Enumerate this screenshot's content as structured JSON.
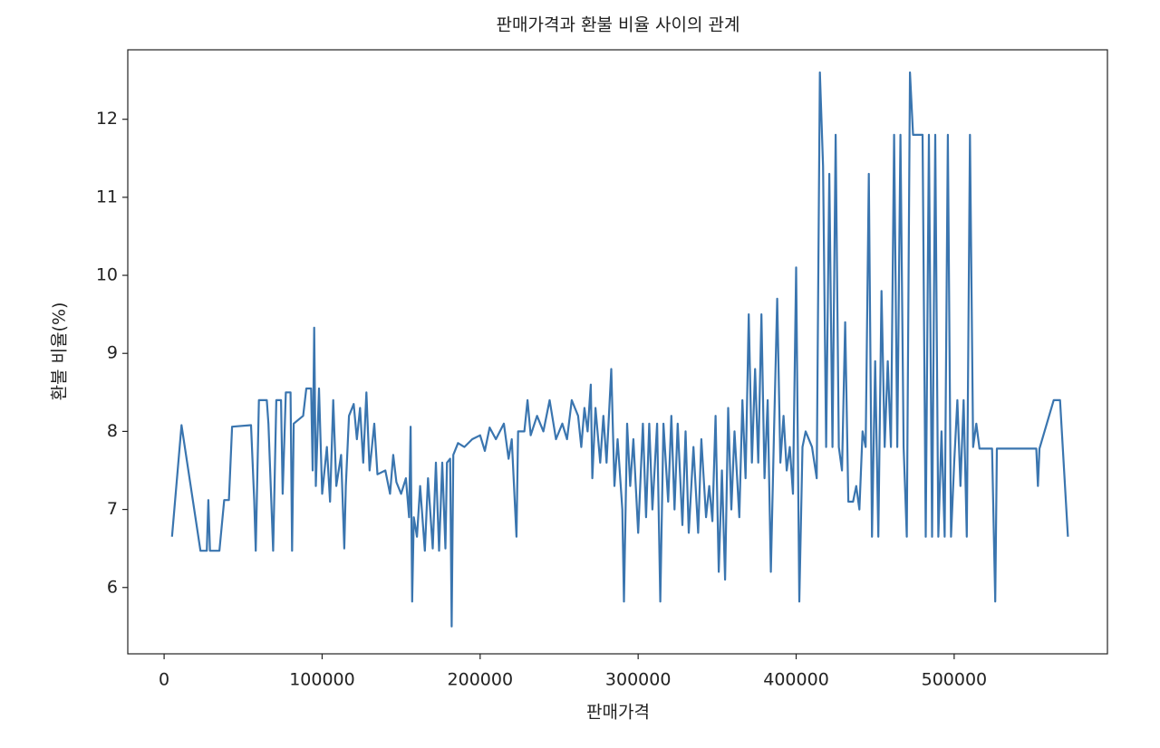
{
  "chart_data": {
    "type": "line",
    "title": "판매가격과 환불 비율 사이의 관계",
    "x_label": "판매가격",
    "y_label": "환불 비율(%)",
    "color": "#3a75af",
    "grid": false,
    "xlim": [
      -23000,
      597000
    ],
    "xticks": [
      0,
      100000,
      200000,
      300000,
      400000,
      500000
    ],
    "ylim": [
      5.15,
      12.89
    ],
    "yticks": [
      6,
      7,
      8,
      9,
      10,
      11,
      12
    ],
    "x": [
      5000,
      11000,
      23000,
      27000,
      28000,
      29000,
      35000,
      38000,
      41000,
      43000,
      55000,
      57000,
      58000,
      60000,
      65000,
      66000,
      69000,
      71000,
      74000,
      75000,
      77000,
      80000,
      81000,
      82000,
      88000,
      90000,
      93000,
      94000,
      95000,
      96000,
      98000,
      100000,
      103000,
      105000,
      107000,
      109000,
      112000,
      114000,
      115000,
      117000,
      120000,
      122000,
      124000,
      126000,
      128000,
      130000,
      133000,
      135000,
      140000,
      143000,
      145000,
      147000,
      150000,
      153000,
      155000,
      156000,
      157000,
      158000,
      160000,
      162000,
      165000,
      167000,
      170000,
      172000,
      174000,
      176000,
      178000,
      179000,
      181000,
      182000,
      183000,
      186000,
      190000,
      195000,
      200000,
      203000,
      206000,
      210000,
      215000,
      218000,
      220000,
      223000,
      224000,
      228000,
      230000,
      232000,
      236000,
      240000,
      244000,
      248000,
      252000,
      255000,
      258000,
      262000,
      264000,
      266000,
      268000,
      270000,
      271000,
      273000,
      276000,
      278000,
      280000,
      283000,
      285000,
      287000,
      290000,
      291000,
      293000,
      295000,
      297000,
      300000,
      303000,
      305000,
      307000,
      309000,
      312000,
      314000,
      316000,
      319000,
      321000,
      323000,
      325000,
      328000,
      330000,
      332000,
      335000,
      338000,
      340000,
      343000,
      345000,
      347000,
      349000,
      351000,
      353000,
      355000,
      357000,
      359000,
      361000,
      364000,
      366000,
      368000,
      370000,
      372000,
      374000,
      376000,
      378000,
      380000,
      382000,
      384000,
      386000,
      388000,
      390000,
      392000,
      394000,
      396000,
      398000,
      400000,
      402000,
      404000,
      406000,
      410000,
      413000,
      415000,
      417000,
      419000,
      421000,
      423000,
      425000,
      427000,
      429000,
      431000,
      433000,
      436000,
      438000,
      440000,
      442000,
      444000,
      446000,
      448000,
      450000,
      452000,
      454000,
      456000,
      458000,
      460000,
      462000,
      464000,
      466000,
      468000,
      470000,
      472000,
      474000,
      480000,
      482000,
      484000,
      486000,
      488000,
      490000,
      492000,
      494000,
      496000,
      498000,
      500000,
      502000,
      504000,
      506000,
      508000,
      510000,
      512000,
      514000,
      516000,
      524000,
      526000,
      527000,
      552000,
      553000,
      554000,
      563000,
      567000,
      572000
    ],
    "values": [
      6.65,
      8.08,
      6.47,
      6.47,
      7.12,
      6.47,
      6.47,
      7.12,
      7.12,
      8.06,
      8.08,
      7.12,
      6.47,
      8.4,
      8.4,
      8.1,
      6.47,
      8.4,
      8.4,
      7.2,
      8.5,
      8.5,
      6.47,
      8.1,
      8.2,
      8.55,
      8.55,
      7.5,
      9.33,
      7.3,
      8.55,
      7.2,
      7.8,
      7.1,
      8.4,
      7.3,
      7.7,
      6.5,
      7.3,
      8.2,
      8.35,
      7.9,
      8.3,
      7.6,
      8.5,
      7.5,
      8.1,
      7.45,
      7.5,
      7.2,
      7.7,
      7.35,
      7.2,
      7.4,
      6.9,
      8.06,
      5.82,
      6.9,
      6.65,
      7.3,
      6.47,
      7.4,
      6.5,
      7.6,
      6.47,
      7.6,
      6.5,
      7.6,
      7.65,
      5.5,
      7.7,
      7.85,
      7.8,
      7.9,
      7.95,
      7.75,
      8.05,
      7.9,
      8.1,
      7.65,
      7.9,
      6.65,
      8.0,
      8.0,
      8.4,
      7.95,
      8.2,
      8.0,
      8.4,
      7.9,
      8.1,
      7.9,
      8.4,
      8.2,
      7.8,
      8.3,
      8.0,
      8.6,
      7.4,
      8.3,
      7.6,
      8.2,
      7.6,
      8.8,
      7.3,
      7.9,
      7.0,
      5.82,
      8.1,
      7.3,
      7.9,
      6.7,
      8.1,
      6.9,
      8.1,
      7.0,
      8.1,
      5.82,
      8.1,
      7.1,
      8.2,
      7.0,
      8.1,
      6.8,
      8.0,
      6.7,
      7.8,
      6.7,
      7.9,
      6.9,
      7.3,
      6.85,
      8.2,
      6.2,
      7.5,
      6.1,
      8.3,
      7.0,
      8.0,
      6.9,
      8.4,
      7.4,
      9.5,
      7.6,
      8.8,
      7.6,
      9.5,
      7.4,
      8.4,
      6.2,
      8.0,
      9.7,
      7.6,
      8.2,
      7.5,
      7.8,
      7.2,
      10.1,
      5.82,
      7.8,
      8.0,
      7.8,
      7.4,
      12.6,
      11.4,
      7.8,
      11.3,
      7.8,
      11.8,
      7.8,
      7.5,
      9.4,
      7.1,
      7.1,
      7.3,
      7.0,
      8.0,
      7.8,
      11.3,
      6.65,
      8.9,
      6.65,
      9.8,
      7.8,
      8.9,
      7.8,
      11.8,
      7.8,
      11.8,
      7.8,
      6.65,
      12.6,
      11.8,
      11.8,
      6.65,
      11.8,
      6.65,
      11.8,
      6.65,
      8.0,
      6.65,
      11.8,
      6.65,
      7.6,
      8.4,
      7.3,
      8.4,
      6.65,
      11.8,
      7.8,
      8.1,
      7.78,
      7.78,
      5.82,
      7.78,
      7.78,
      7.3,
      7.78,
      8.4,
      8.4,
      6.65
    ]
  }
}
